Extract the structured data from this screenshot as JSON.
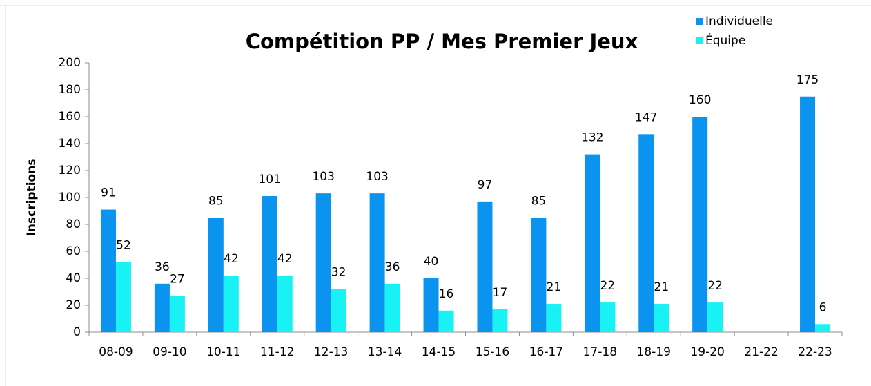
{
  "chart_data": {
    "type": "bar",
    "title": "Compétition PP / Mes Premier Jeux",
    "y_label": "Inscriptions",
    "categories": [
      "08-09",
      "09-10",
      "10-11",
      "11-12",
      "12-13",
      "13-14",
      "14-15",
      "15-16",
      "16-17",
      "17-18",
      "18-19",
      "19-20",
      "21-22",
      "22-23"
    ],
    "series": [
      {
        "name": "Individuelle",
        "color": "#0b93f0",
        "values": [
          91,
          36,
          85,
          101,
          103,
          103,
          40,
          97,
          85,
          132,
          147,
          160,
          null,
          175
        ]
      },
      {
        "name": "Équipe",
        "color": "#19f2f4",
        "values": [
          52,
          27,
          42,
          42,
          32,
          36,
          16,
          17,
          21,
          22,
          21,
          22,
          null,
          6
        ]
      }
    ],
    "ylim": [
      0,
      200
    ],
    "yticks": [
      0,
      20,
      40,
      60,
      80,
      100,
      120,
      140,
      160,
      180,
      200
    ],
    "grid": false,
    "legend": "top-right"
  }
}
